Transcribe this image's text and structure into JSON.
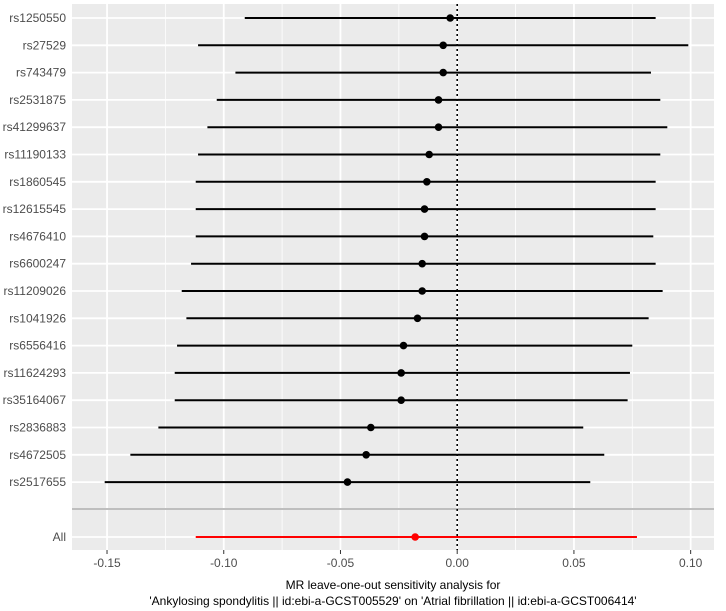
{
  "chart_data": {
    "type": "scatter",
    "subtype": "forest-plot",
    "xlabel_line1": "MR leave-one-out sensitivity analysis for",
    "xlabel_line2": "'Ankylosing spondylitis || id:ebi-a-GCST005529' on 'Atrial fibrillation || id:ebi-a-GCST006414'",
    "xlim": [
      -0.165,
      0.11
    ],
    "xticks": [
      -0.15,
      -0.1,
      -0.05,
      0.0,
      0.05,
      0.1
    ],
    "xtick_labels": [
      "-0.15",
      "-0.10",
      "-0.05",
      "0.00",
      "0.05",
      "0.10"
    ],
    "reference_line_x": 0,
    "grid": true,
    "colors": {
      "panel_background": "#ebebeb",
      "grid": "#ffffff",
      "snp_series": "#000000",
      "all_series": "#ff0000",
      "separator": "#bebebe",
      "reference_line": "#000000"
    },
    "rows": [
      {
        "label": "rs1250550",
        "estimate": -0.003,
        "lower": -0.091,
        "upper": 0.085
      },
      {
        "label": "rs27529",
        "estimate": -0.006,
        "lower": -0.111,
        "upper": 0.099
      },
      {
        "label": "rs743479",
        "estimate": -0.006,
        "lower": -0.095,
        "upper": 0.083
      },
      {
        "label": "rs2531875",
        "estimate": -0.008,
        "lower": -0.103,
        "upper": 0.087
      },
      {
        "label": "rs41299637",
        "estimate": -0.008,
        "lower": -0.107,
        "upper": 0.09
      },
      {
        "label": "rs11190133",
        "estimate": -0.012,
        "lower": -0.111,
        "upper": 0.087
      },
      {
        "label": "rs1860545",
        "estimate": -0.013,
        "lower": -0.112,
        "upper": 0.085
      },
      {
        "label": "rs12615545",
        "estimate": -0.014,
        "lower": -0.112,
        "upper": 0.085
      },
      {
        "label": "rs4676410",
        "estimate": -0.014,
        "lower": -0.112,
        "upper": 0.084
      },
      {
        "label": "rs6600247",
        "estimate": -0.015,
        "lower": -0.114,
        "upper": 0.085
      },
      {
        "label": "rs11209026",
        "estimate": -0.015,
        "lower": -0.118,
        "upper": 0.088
      },
      {
        "label": "rs1041926",
        "estimate": -0.017,
        "lower": -0.116,
        "upper": 0.082
      },
      {
        "label": "rs6556416",
        "estimate": -0.023,
        "lower": -0.12,
        "upper": 0.075
      },
      {
        "label": "rs11624293",
        "estimate": -0.024,
        "lower": -0.121,
        "upper": 0.074
      },
      {
        "label": "rs35164067",
        "estimate": -0.024,
        "lower": -0.121,
        "upper": 0.073
      },
      {
        "label": "rs2836883",
        "estimate": -0.037,
        "lower": -0.128,
        "upper": 0.054
      },
      {
        "label": "rs4672505",
        "estimate": -0.039,
        "lower": -0.14,
        "upper": 0.063
      },
      {
        "label": "rs2517655",
        "estimate": -0.047,
        "lower": -0.151,
        "upper": 0.057
      }
    ],
    "overall": {
      "label": "All",
      "estimate": -0.018,
      "lower": -0.112,
      "upper": 0.077
    }
  }
}
